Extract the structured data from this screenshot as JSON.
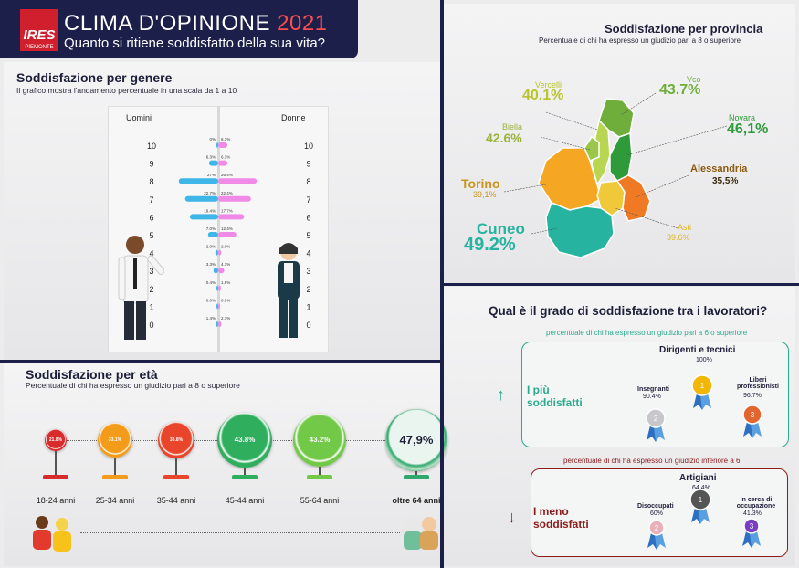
{
  "header": {
    "logo_text": "IRES",
    "logo_sub": "PIEMONTE",
    "title_main": "CLIMA D'OPINIONE",
    "title_year": "2021",
    "subtitle": "Quanto si ritiene soddisfatto della sua vita?"
  },
  "gender": {
    "title": "Soddisfazione per genere",
    "subtitle": "Il grafico mostra l'andamento percentuale in una scala da 1 a 10",
    "left_label": "Uomini",
    "right_label": "Donne"
  },
  "age": {
    "title": "Soddisfazione per età",
    "subtitle": "Percentuale di chi ha espresso un giudizio pari a 8 o superiore"
  },
  "province": {
    "title": "Soddisfazione per provincia",
    "subtitle": "Percentuale di chi ha espresso un giudizio pari a 8 o superiore"
  },
  "workers": {
    "title": "Qual è il grado di soddisfazione tra i lavoratori?",
    "top_subtitle": "percentuale di chi ha espresso un giudizio pari a 6 o superiore",
    "bottom_subtitle": "percentuale di chi ha espresso un giudizio inferiore a 6",
    "top_label": "I più soddisfatti",
    "bottom_label": "I meno soddisfatti",
    "top": [
      {
        "name": "Dirigenti e tecnici",
        "value": "100%",
        "color": "#f2b705"
      },
      {
        "name": "Insegnanti",
        "value": "90.4%",
        "color": "#c7c7cc"
      },
      {
        "name": "Liberi professionisti",
        "value": "96.7%",
        "color": "#e2652e"
      }
    ],
    "bottom": [
      {
        "name": "Artigiani",
        "value": "64.4%",
        "color": "#555"
      },
      {
        "name": "Disoccupati",
        "value": "60%",
        "color": "#e8b0b8"
      },
      {
        "name": "In cerca di occupazione",
        "value": "41.3%",
        "color": "#7a3fc0"
      }
    ]
  },
  "chart_data": [
    {
      "type": "bar",
      "title": "Soddisfazione per genere",
      "categories": [
        "10",
        "9",
        "8",
        "7",
        "6",
        "5",
        "4",
        "3",
        "2",
        "1",
        "0"
      ],
      "series": [
        {
          "name": "Uomini",
          "values": [
            0.0,
            6.3,
            27.0,
            22.7,
            19.4,
            7.0,
            2.0,
            3.3,
            0.4,
            0.0,
            1.4
          ],
          "labels": [
            "0%",
            "6.3%",
            "27%",
            "22.7%",
            "19.4%",
            "7.0%",
            "2.0%",
            "3.3%",
            "0.4%",
            "0.0%",
            "1.4%"
          ],
          "color": "#3fb6e8"
        },
        {
          "name": "Donne",
          "values": [
            6.3,
            6.3,
            26.4,
            22.4,
            17.7,
            12.4,
            2.0,
            4.1,
            1.8,
            0.0,
            2.1
          ],
          "labels": [
            "6.3%",
            "6.3%",
            "26.4%",
            "22.4%",
            "17.7%",
            "12.4%",
            "2.0%",
            "4.1%",
            "1.8%",
            "0.0%",
            "2.1%"
          ],
          "color": "#f08ae6"
        }
      ]
    },
    {
      "type": "scatter",
      "title": "Soddisfazione per età",
      "categories": [
        "18-24 anni",
        "25-34 anni",
        "35-44 anni",
        "45-44 anni",
        "55-64 anni",
        "oltre 64 anni"
      ],
      "values": [
        21.8,
        33.1,
        33.8,
        43.8,
        43.2,
        47.9
      ],
      "labels": [
        "21.8%",
        "33.1%",
        "33.8%",
        "43.8%",
        "43.2%",
        "47,9%"
      ],
      "colors": [
        "#d82c2c",
        "#f49b1a",
        "#e8452a",
        "#2fae5e",
        "#72c948",
        "#2fa86e"
      ]
    },
    {
      "type": "table",
      "title": "Soddisfazione per provincia",
      "categories": [
        "Vercelli",
        "Vco",
        "Biella",
        "Novara",
        "Torino",
        "Alessandria",
        "Cuneo",
        "Asti"
      ],
      "values": [
        40.1,
        43.7,
        42.6,
        46.1,
        39.1,
        35.5,
        49.2,
        39.6
      ],
      "labels": [
        "40.1%",
        "43.7%",
        "42.6%",
        "46,1%",
        "39,1%",
        "35,5%",
        "49.2%",
        "39.6%"
      ]
    }
  ]
}
